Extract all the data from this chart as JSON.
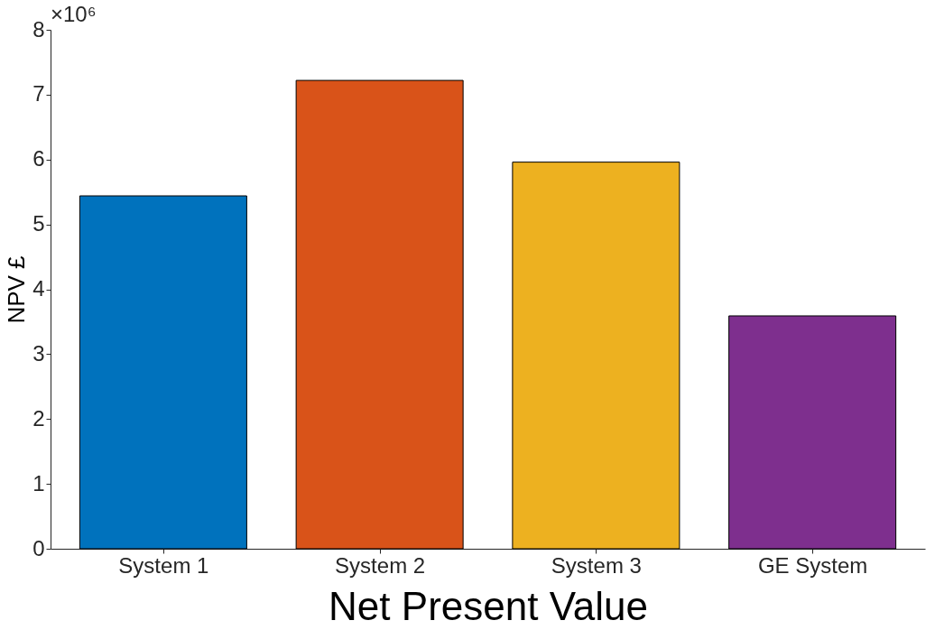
{
  "chart_data": {
    "type": "bar",
    "xlabel": "Net Present Value",
    "ylabel": "NPV £",
    "categories": [
      "System 1",
      "System 2",
      "System 3",
      "GE System"
    ],
    "values": [
      5.44,
      7.22,
      5.96,
      3.59
    ],
    "colors": [
      "#0072bd",
      "#d95319",
      "#edb120",
      "#7e2f8e"
    ],
    "ylim": [
      0,
      8
    ],
    "yticks": [
      0,
      1,
      2,
      3,
      4,
      5,
      6,
      7,
      8
    ],
    "grid": false,
    "annotations": [
      "×10⁶"
    ]
  }
}
